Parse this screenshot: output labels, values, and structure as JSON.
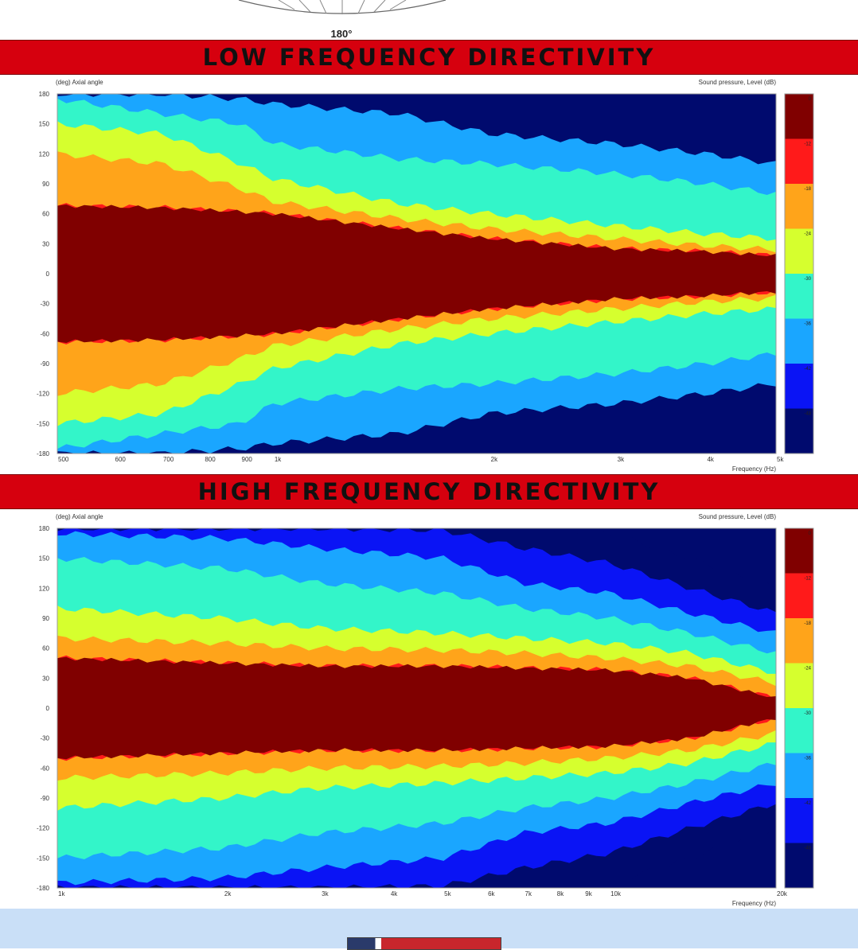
{
  "polar": {
    "label": "180°"
  },
  "sections": [
    {
      "banner": "LOW FREQUENCY DIRECTIVITY"
    },
    {
      "banner": "HIGH FREQUENCY DIRECTIVITY"
    }
  ],
  "chart_data": [
    {
      "type": "heatmap",
      "title": "LOW FREQUENCY DIRECTIVITY",
      "ylabel": "(deg)  Axial angle",
      "xlabel": "Frequency  (Hz)",
      "colorbar_label": "Sound pressure, Level  (dB)",
      "x_scale": "log",
      "xlim": [
        500,
        5000
      ],
      "ylim": [
        -180,
        180
      ],
      "x_ticks": [
        {
          "v": 500,
          "t": "500"
        },
        {
          "v": 600,
          "t": "600"
        },
        {
          "v": 700,
          "t": "700"
        },
        {
          "v": 800,
          "t": "800"
        },
        {
          "v": 900,
          "t": "900"
        },
        {
          "v": 1000,
          "t": "1k"
        },
        {
          "v": 2000,
          "t": "2k"
        },
        {
          "v": 3000,
          "t": "3k"
        },
        {
          "v": 4000,
          "t": "4k"
        },
        {
          "v": 5000,
          "t": "5k"
        }
      ],
      "y_ticks": [
        "180",
        "150",
        "120",
        "90",
        "60",
        "30",
        "0",
        "-30",
        "-60",
        "-90",
        "-120",
        "-150",
        "-180"
      ],
      "levels": [
        {
          "range": "0 to -6",
          "color": "#800000"
        },
        {
          "range": "-6 to -12",
          "color": "#ff1a1a"
        },
        {
          "range": "-12 to -18",
          "color": "#ffa41a"
        },
        {
          "range": "-18 to -24",
          "color": "#d6ff2e"
        },
        {
          "range": "-24 to -30",
          "color": "#33f5c9"
        },
        {
          "range": "-30 to -36",
          "color": "#1aa6ff"
        },
        {
          "range": "-36 to -42",
          "color": "#0a14f5"
        },
        {
          "range": "-42 to -48",
          "color": "#000a6e"
        }
      ],
      "colorbar_ticks": [
        "0",
        "-12",
        "-18",
        "-24",
        "-30",
        "-36",
        "-42",
        "-48"
      ],
      "contour_half_width_deg": [
        {
          "freq": 500,
          "minus6": 68,
          "minus12": 120,
          "minus18": 150,
          "minus24": 175,
          "minus30": 180
        },
        {
          "freq": 700,
          "minus6": 66,
          "minus12": 110,
          "minus18": 140,
          "minus24": 160,
          "minus30": 180
        },
        {
          "freq": 900,
          "minus6": 62,
          "minus12": 85,
          "minus18": 110,
          "minus24": 150,
          "minus30": 175
        },
        {
          "freq": 1000,
          "minus6": 60,
          "minus12": 72,
          "minus18": 95,
          "minus24": 130,
          "minus30": 170
        },
        {
          "freq": 1500,
          "minus6": 45,
          "minus12": 55,
          "minus18": 70,
          "minus24": 115,
          "minus30": 160
        },
        {
          "freq": 2000,
          "minus6": 35,
          "minus12": 45,
          "minus18": 60,
          "minus24": 110,
          "minus30": 140
        },
        {
          "freq": 3000,
          "minus6": 25,
          "minus12": 35,
          "minus18": 48,
          "minus24": 100,
          "minus30": 130
        },
        {
          "freq": 4000,
          "minus6": 22,
          "minus12": 28,
          "minus18": 40,
          "minus24": 90,
          "minus30": 120
        },
        {
          "freq": 5000,
          "minus6": 18,
          "minus12": 24,
          "minus18": 35,
          "minus24": 80,
          "minus30": 110
        }
      ]
    },
    {
      "type": "heatmap",
      "title": "HIGH FREQUENCY DIRECTIVITY",
      "ylabel": "(deg)  Axial angle",
      "xlabel": "Frequency  (Hz)",
      "colorbar_label": "Sound pressure, Level  (dB)",
      "x_scale": "log",
      "xlim": [
        1000,
        20000
      ],
      "ylim": [
        -180,
        180
      ],
      "x_ticks": [
        {
          "v": 1000,
          "t": "1k"
        },
        {
          "v": 2000,
          "t": "2k"
        },
        {
          "v": 3000,
          "t": "3k"
        },
        {
          "v": 4000,
          "t": "4k"
        },
        {
          "v": 5000,
          "t": "5k"
        },
        {
          "v": 6000,
          "t": "6k"
        },
        {
          "v": 7000,
          "t": "7k"
        },
        {
          "v": 8000,
          "t": "8k"
        },
        {
          "v": 9000,
          "t": "9k"
        },
        {
          "v": 10000,
          "t": "10k"
        },
        {
          "v": 20000,
          "t": "20k"
        }
      ],
      "y_ticks": [
        "180",
        "150",
        "120",
        "90",
        "60",
        "30",
        "0",
        "-30",
        "-60",
        "-90",
        "-120",
        "-150",
        "-180"
      ],
      "levels": [
        {
          "range": "0 to -6",
          "color": "#800000"
        },
        {
          "range": "-6 to -12",
          "color": "#ff1a1a"
        },
        {
          "range": "-12 to -18",
          "color": "#ffa41a"
        },
        {
          "range": "-18 to -24",
          "color": "#d6ff2e"
        },
        {
          "range": "-24 to -30",
          "color": "#33f5c9"
        },
        {
          "range": "-30 to -36",
          "color": "#1aa6ff"
        },
        {
          "range": "-36 to -42",
          "color": "#0a14f5"
        },
        {
          "range": "-42 to -48",
          "color": "#000a6e"
        }
      ],
      "colorbar_ticks": [
        "0",
        "-12",
        "-18",
        "-24",
        "-30",
        "-36",
        "-42",
        "-48"
      ],
      "contour_half_width_deg": [
        {
          "freq": 1000,
          "minus6": 50,
          "minus12": 70,
          "minus18": 100,
          "minus24": 150,
          "minus30": 175,
          "minus36": 180,
          "minus42": 180
        },
        {
          "freq": 2000,
          "minus6": 45,
          "minus12": 65,
          "minus18": 90,
          "minus24": 140,
          "minus30": 170,
          "minus36": 180,
          "minus42": 180
        },
        {
          "freq": 3000,
          "minus6": 42,
          "minus12": 60,
          "minus18": 80,
          "minus24": 125,
          "minus30": 160,
          "minus36": 180,
          "minus42": 180
        },
        {
          "freq": 5000,
          "minus6": 42,
          "minus12": 58,
          "minus18": 75,
          "minus24": 115,
          "minus30": 150,
          "minus36": 178,
          "minus42": 180
        },
        {
          "freq": 7000,
          "minus6": 40,
          "minus12": 55,
          "minus18": 70,
          "minus24": 100,
          "minus30": 125,
          "minus36": 160,
          "minus42": 180
        },
        {
          "freq": 10000,
          "minus6": 38,
          "minus12": 50,
          "minus18": 65,
          "minus24": 90,
          "minus30": 115,
          "minus36": 145,
          "minus42": 175
        },
        {
          "freq": 14000,
          "minus6": 30,
          "minus12": 42,
          "minus18": 55,
          "minus24": 75,
          "minus30": 95,
          "minus36": 120,
          "minus42": 150
        },
        {
          "freq": 20000,
          "minus6": 10,
          "minus12": 25,
          "minus18": 35,
          "minus24": 55,
          "minus30": 75,
          "minus36": 95,
          "minus42": 120
        }
      ]
    }
  ]
}
